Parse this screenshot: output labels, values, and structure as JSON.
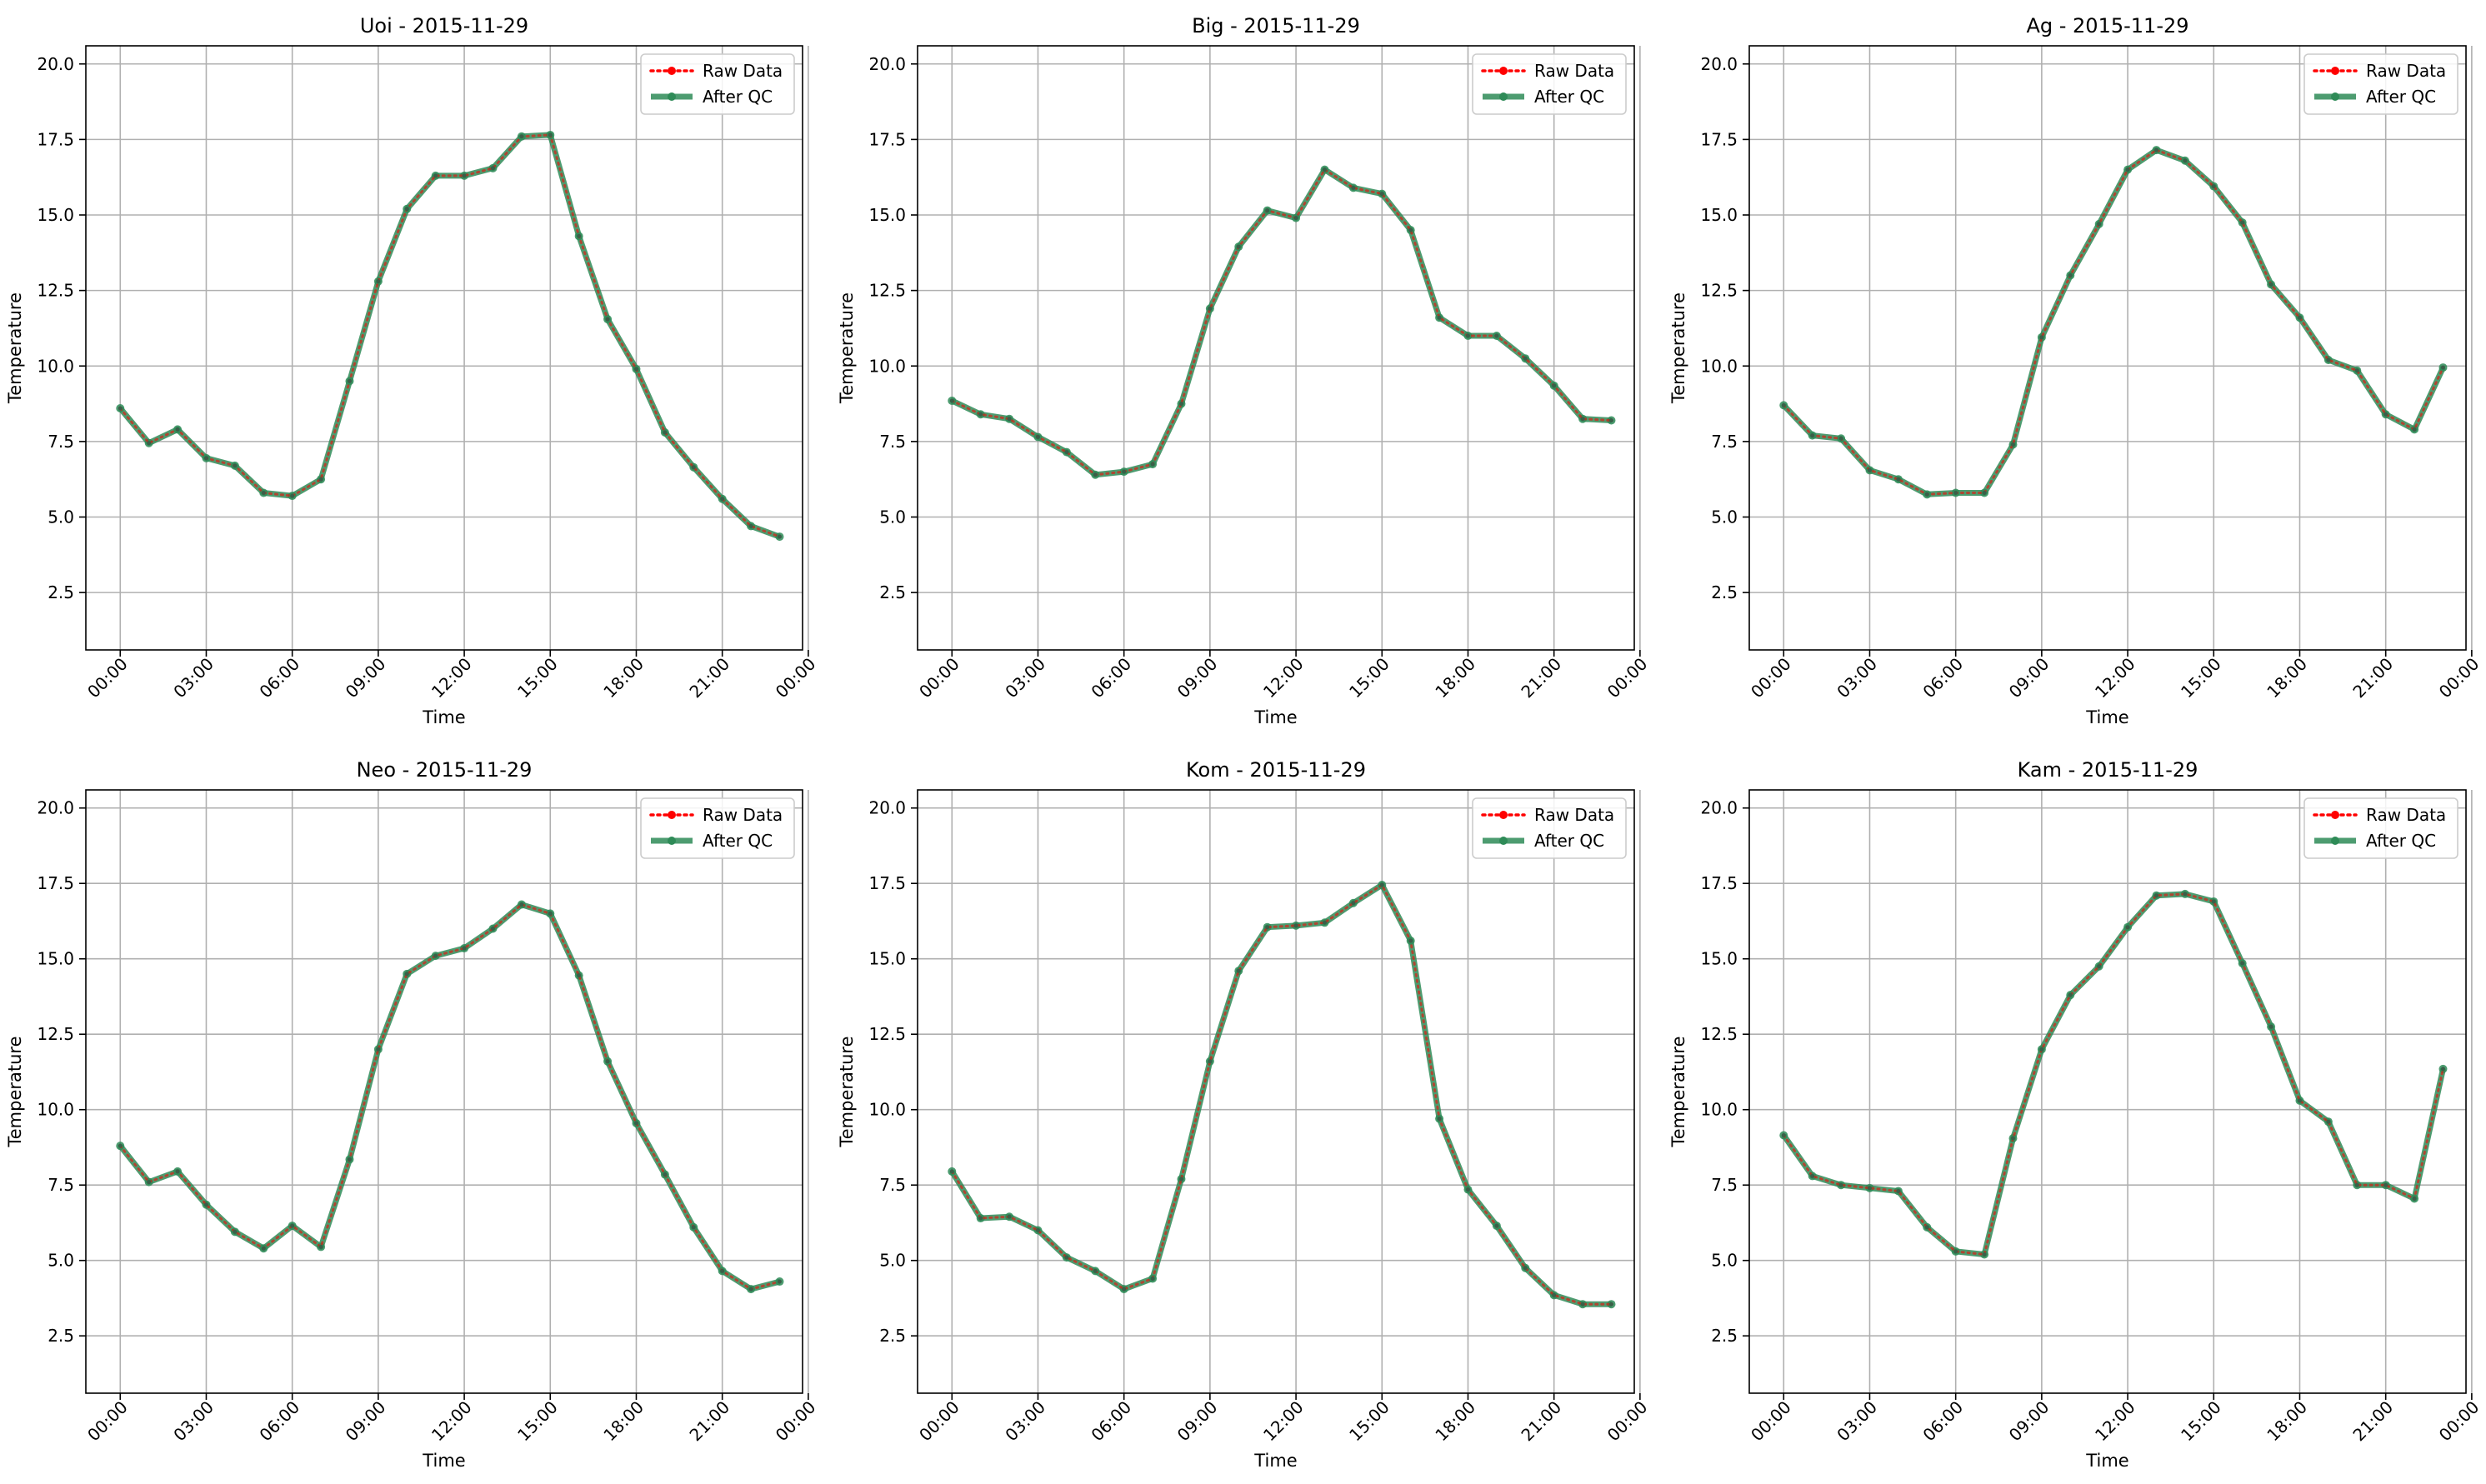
{
  "chart_data": [
    {
      "type": "line",
      "title": "Uoi - 2015-11-29",
      "xlabel": "Time",
      "ylabel": "Temperature",
      "ylim": [
        0.6,
        20.6
      ],
      "xlim": [
        -1.2,
        23.8
      ],
      "yticks": [
        2.5,
        5.0,
        7.5,
        10.0,
        12.5,
        15.0,
        17.5,
        20.0
      ],
      "ytick_labels": [
        "2.5",
        "5.0",
        "7.5",
        "10.0",
        "12.5",
        "15.0",
        "17.5",
        "20.0"
      ],
      "xticks": [
        0,
        3,
        6,
        9,
        12,
        15,
        18,
        21,
        24
      ],
      "xtick_labels": [
        "00:00",
        "03:00",
        "06:00",
        "09:00",
        "12:00",
        "15:00",
        "18:00",
        "21:00",
        "00:00"
      ],
      "grid": true,
      "legend": "top-right",
      "x": [
        "00:00",
        "01:00",
        "02:00",
        "03:00",
        "04:00",
        "05:00",
        "06:00",
        "07:00",
        "08:00",
        "09:00",
        "10:00",
        "11:00",
        "12:00",
        "13:00",
        "14:00",
        "15:00",
        "16:00",
        "17:00",
        "18:00",
        "19:00",
        "20:00",
        "21:00",
        "22:00",
        "23:00"
      ],
      "series": [
        {
          "name": "Raw Data",
          "color": "#ff0000",
          "style": "dotted",
          "values": [
            8.6,
            7.45,
            7.9,
            6.95,
            6.7,
            5.8,
            5.7,
            6.25,
            9.5,
            12.8,
            15.2,
            16.3,
            16.3,
            16.55,
            17.6,
            17.65,
            14.3,
            11.55,
            9.9,
            7.8,
            6.65,
            5.6,
            4.7,
            4.35
          ]
        },
        {
          "name": "After QC",
          "color": "#2e8b57",
          "style": "solid",
          "values": [
            8.6,
            7.45,
            7.9,
            6.95,
            6.7,
            5.8,
            5.7,
            6.25,
            9.5,
            12.8,
            15.2,
            16.3,
            16.3,
            16.55,
            17.6,
            17.65,
            14.3,
            11.55,
            9.9,
            7.8,
            6.65,
            5.6,
            4.7,
            4.35
          ]
        }
      ]
    },
    {
      "type": "line",
      "title": "Big - 2015-11-29",
      "xlabel": "Time",
      "ylabel": "Temperature",
      "ylim": [
        0.6,
        20.6
      ],
      "xlim": [
        -1.2,
        23.8
      ],
      "yticks": [
        2.5,
        5.0,
        7.5,
        10.0,
        12.5,
        15.0,
        17.5,
        20.0
      ],
      "ytick_labels": [
        "2.5",
        "5.0",
        "7.5",
        "10.0",
        "12.5",
        "15.0",
        "17.5",
        "20.0"
      ],
      "xticks": [
        0,
        3,
        6,
        9,
        12,
        15,
        18,
        21,
        24
      ],
      "xtick_labels": [
        "00:00",
        "03:00",
        "06:00",
        "09:00",
        "12:00",
        "15:00",
        "18:00",
        "21:00",
        "00:00"
      ],
      "grid": true,
      "legend": "top-right",
      "x": [
        "00:00",
        "01:00",
        "02:00",
        "03:00",
        "04:00",
        "05:00",
        "06:00",
        "07:00",
        "08:00",
        "09:00",
        "10:00",
        "11:00",
        "12:00",
        "13:00",
        "14:00",
        "15:00",
        "16:00",
        "17:00",
        "18:00",
        "19:00",
        "20:00",
        "21:00",
        "22:00",
        "23:00"
      ],
      "series": [
        {
          "name": "Raw Data",
          "color": "#ff0000",
          "style": "dotted",
          "values": [
            8.85,
            8.4,
            8.25,
            7.65,
            7.15,
            6.4,
            6.5,
            6.75,
            8.75,
            11.9,
            13.95,
            15.15,
            14.9,
            16.5,
            15.9,
            15.7,
            14.5,
            11.6,
            11.0,
            11.0,
            10.25,
            9.35,
            8.25,
            8.2
          ]
        },
        {
          "name": "After QC",
          "color": "#2e8b57",
          "style": "solid",
          "values": [
            8.85,
            8.4,
            8.25,
            7.65,
            7.15,
            6.4,
            6.5,
            6.75,
            8.75,
            11.9,
            13.95,
            15.15,
            14.9,
            16.5,
            15.9,
            15.7,
            14.5,
            11.6,
            11.0,
            11.0,
            10.25,
            9.35,
            8.25,
            8.2
          ]
        }
      ]
    },
    {
      "type": "line",
      "title": "Ag - 2015-11-29",
      "xlabel": "Time",
      "ylabel": "Temperature",
      "ylim": [
        0.6,
        20.6
      ],
      "xlim": [
        -1.2,
        23.8
      ],
      "yticks": [
        2.5,
        5.0,
        7.5,
        10.0,
        12.5,
        15.0,
        17.5,
        20.0
      ],
      "ytick_labels": [
        "2.5",
        "5.0",
        "7.5",
        "10.0",
        "12.5",
        "15.0",
        "17.5",
        "20.0"
      ],
      "xticks": [
        0,
        3,
        6,
        9,
        12,
        15,
        18,
        21,
        24
      ],
      "xtick_labels": [
        "00:00",
        "03:00",
        "06:00",
        "09:00",
        "12:00",
        "15:00",
        "18:00",
        "21:00",
        "00:00"
      ],
      "grid": true,
      "legend": "top-right",
      "x": [
        "00:00",
        "01:00",
        "02:00",
        "03:00",
        "04:00",
        "05:00",
        "06:00",
        "07:00",
        "08:00",
        "09:00",
        "10:00",
        "11:00",
        "12:00",
        "13:00",
        "14:00",
        "15:00",
        "16:00",
        "17:00",
        "18:00",
        "19:00",
        "20:00",
        "21:00",
        "22:00",
        "23:00"
      ],
      "series": [
        {
          "name": "Raw Data",
          "color": "#ff0000",
          "style": "dotted",
          "values": [
            8.7,
            7.7,
            7.6,
            6.55,
            6.25,
            5.75,
            5.8,
            5.8,
            7.4,
            10.95,
            13.0,
            14.7,
            16.5,
            17.15,
            16.8,
            15.95,
            14.75,
            12.7,
            11.6,
            10.2,
            9.85,
            8.4,
            7.9,
            9.95
          ]
        },
        {
          "name": "After QC",
          "color": "#2e8b57",
          "style": "solid",
          "values": [
            8.7,
            7.7,
            7.6,
            6.55,
            6.25,
            5.75,
            5.8,
            5.8,
            7.4,
            10.95,
            13.0,
            14.7,
            16.5,
            17.15,
            16.8,
            15.95,
            14.75,
            12.7,
            11.6,
            10.2,
            9.85,
            8.4,
            7.9,
            9.95
          ]
        }
      ]
    },
    {
      "type": "line",
      "title": "Neo - 2015-11-29",
      "xlabel": "Time",
      "ylabel": "Temperature",
      "ylim": [
        0.6,
        20.6
      ],
      "xlim": [
        -1.2,
        23.8
      ],
      "yticks": [
        2.5,
        5.0,
        7.5,
        10.0,
        12.5,
        15.0,
        17.5,
        20.0
      ],
      "ytick_labels": [
        "2.5",
        "5.0",
        "7.5",
        "10.0",
        "12.5",
        "15.0",
        "17.5",
        "20.0"
      ],
      "xticks": [
        0,
        3,
        6,
        9,
        12,
        15,
        18,
        21,
        24
      ],
      "xtick_labels": [
        "00:00",
        "03:00",
        "06:00",
        "09:00",
        "12:00",
        "15:00",
        "18:00",
        "21:00",
        "00:00"
      ],
      "grid": true,
      "legend": "top-right",
      "x": [
        "00:00",
        "01:00",
        "02:00",
        "03:00",
        "04:00",
        "05:00",
        "06:00",
        "07:00",
        "08:00",
        "09:00",
        "10:00",
        "11:00",
        "12:00",
        "13:00",
        "14:00",
        "15:00",
        "16:00",
        "17:00",
        "18:00",
        "19:00",
        "20:00",
        "21:00",
        "22:00",
        "23:00"
      ],
      "series": [
        {
          "name": "Raw Data",
          "color": "#ff0000",
          "style": "dotted",
          "values": [
            8.8,
            7.6,
            7.95,
            6.85,
            5.95,
            5.4,
            6.15,
            5.45,
            8.35,
            12.0,
            14.5,
            15.1,
            15.35,
            16.0,
            16.8,
            16.5,
            14.45,
            11.6,
            9.55,
            7.85,
            6.1,
            4.65,
            4.05,
            4.3
          ]
        },
        {
          "name": "After QC",
          "color": "#2e8b57",
          "style": "solid",
          "values": [
            8.8,
            7.6,
            7.95,
            6.85,
            5.95,
            5.4,
            6.15,
            5.45,
            8.35,
            12.0,
            14.5,
            15.1,
            15.35,
            16.0,
            16.8,
            16.5,
            14.45,
            11.6,
            9.55,
            7.85,
            6.1,
            4.65,
            4.05,
            4.3
          ]
        }
      ]
    },
    {
      "type": "line",
      "title": "Kom - 2015-11-29",
      "xlabel": "Time",
      "ylabel": "Temperature",
      "ylim": [
        0.6,
        20.6
      ],
      "xlim": [
        -1.2,
        23.8
      ],
      "yticks": [
        2.5,
        5.0,
        7.5,
        10.0,
        12.5,
        15.0,
        17.5,
        20.0
      ],
      "ytick_labels": [
        "2.5",
        "5.0",
        "7.5",
        "10.0",
        "12.5",
        "15.0",
        "17.5",
        "20.0"
      ],
      "xticks": [
        0,
        3,
        6,
        9,
        12,
        15,
        18,
        21,
        24
      ],
      "xtick_labels": [
        "00:00",
        "03:00",
        "06:00",
        "09:00",
        "12:00",
        "15:00",
        "18:00",
        "21:00",
        "00:00"
      ],
      "grid": true,
      "legend": "top-right",
      "x": [
        "00:00",
        "01:00",
        "02:00",
        "03:00",
        "04:00",
        "05:00",
        "06:00",
        "07:00",
        "08:00",
        "09:00",
        "10:00",
        "11:00",
        "12:00",
        "13:00",
        "14:00",
        "15:00",
        "16:00",
        "17:00",
        "18:00",
        "19:00",
        "20:00",
        "21:00",
        "22:00",
        "23:00"
      ],
      "series": [
        {
          "name": "Raw Data",
          "color": "#ff0000",
          "style": "dotted",
          "values": [
            7.95,
            6.4,
            6.45,
            6.0,
            5.1,
            4.65,
            4.05,
            4.4,
            7.7,
            11.6,
            14.6,
            16.05,
            16.1,
            16.2,
            16.85,
            17.45,
            15.6,
            9.7,
            7.35,
            6.15,
            4.75,
            3.85,
            3.55,
            3.55
          ]
        },
        {
          "name": "After QC",
          "color": "#2e8b57",
          "style": "solid",
          "values": [
            7.95,
            6.4,
            6.45,
            6.0,
            5.1,
            4.65,
            4.05,
            4.4,
            7.7,
            11.6,
            14.6,
            16.05,
            16.1,
            16.2,
            16.85,
            17.45,
            15.6,
            9.7,
            7.35,
            6.15,
            4.75,
            3.85,
            3.55,
            3.55
          ]
        }
      ]
    },
    {
      "type": "line",
      "title": "Kam - 2015-11-29",
      "xlabel": "Time",
      "ylabel": "Temperature",
      "ylim": [
        0.6,
        20.6
      ],
      "xlim": [
        -1.2,
        23.8
      ],
      "yticks": [
        2.5,
        5.0,
        7.5,
        10.0,
        12.5,
        15.0,
        17.5,
        20.0
      ],
      "ytick_labels": [
        "2.5",
        "5.0",
        "7.5",
        "10.0",
        "12.5",
        "15.0",
        "17.5",
        "20.0"
      ],
      "xticks": [
        0,
        3,
        6,
        9,
        12,
        15,
        18,
        21,
        24
      ],
      "xtick_labels": [
        "00:00",
        "03:00",
        "06:00",
        "09:00",
        "12:00",
        "15:00",
        "18:00",
        "21:00",
        "00:00"
      ],
      "grid": true,
      "legend": "top-right",
      "x": [
        "00:00",
        "01:00",
        "02:00",
        "03:00",
        "04:00",
        "05:00",
        "06:00",
        "07:00",
        "08:00",
        "09:00",
        "10:00",
        "11:00",
        "12:00",
        "13:00",
        "14:00",
        "15:00",
        "16:00",
        "17:00",
        "18:00",
        "19:00",
        "20:00",
        "21:00",
        "22:00",
        "23:00"
      ],
      "series": [
        {
          "name": "Raw Data",
          "color": "#ff0000",
          "style": "dotted",
          "values": [
            9.15,
            7.8,
            7.5,
            7.4,
            7.3,
            6.1,
            5.3,
            5.2,
            9.05,
            12.0,
            13.8,
            14.75,
            16.05,
            17.1,
            17.15,
            16.9,
            14.85,
            12.75,
            10.3,
            9.6,
            7.5,
            7.5,
            7.05,
            11.35
          ]
        },
        {
          "name": "After QC",
          "color": "#2e8b57",
          "style": "solid",
          "values": [
            9.15,
            7.8,
            7.5,
            7.4,
            7.3,
            6.1,
            5.3,
            5.2,
            9.05,
            12.0,
            13.8,
            14.75,
            16.05,
            17.1,
            17.15,
            16.9,
            14.85,
            12.75,
            10.3,
            9.6,
            7.5,
            7.5,
            7.05,
            11.35
          ]
        }
      ]
    }
  ]
}
